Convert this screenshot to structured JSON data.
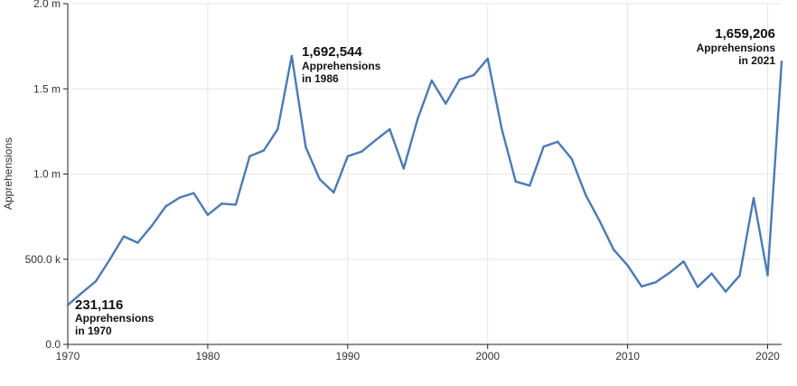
{
  "chart_data": {
    "type": "line",
    "title": "",
    "xlabel": "",
    "ylabel": "Apprehensions",
    "xlim": [
      1970,
      2021
    ],
    "ylim": [
      0,
      2000000
    ],
    "grid": true,
    "line_color": "#4a7ab5",
    "x_ticks": [
      {
        "value": 1970,
        "label": "1970"
      },
      {
        "value": 1980,
        "label": "1980"
      },
      {
        "value": 1990,
        "label": "1990"
      },
      {
        "value": 2000,
        "label": "2000"
      },
      {
        "value": 2010,
        "label": "2010"
      },
      {
        "value": 2020,
        "label": "2020"
      }
    ],
    "y_ticks": [
      {
        "value": 0,
        "label": "0.0"
      },
      {
        "value": 500000,
        "label": "500.0 k"
      },
      {
        "value": 1000000,
        "label": "1.0 m"
      },
      {
        "value": 1500000,
        "label": "1.5 m"
      },
      {
        "value": 2000000,
        "label": "2.0 m"
      }
    ],
    "series": [
      {
        "x": [
          1970,
          1971,
          1972,
          1973,
          1974,
          1975,
          1976,
          1977,
          1978,
          1979,
          1980,
          1981,
          1982,
          1983,
          1984,
          1985,
          1986,
          1987,
          1988,
          1989,
          1990,
          1991,
          1992,
          1993,
          1994,
          1995,
          1996,
          1997,
          1998,
          1999,
          2000,
          2001,
          2002,
          2003,
          2004,
          2005,
          2006,
          2007,
          2008,
          2009,
          2010,
          2011,
          2012,
          2013,
          2014,
          2015,
          2016,
          2017,
          2018,
          2019,
          2020,
          2021
        ],
        "values": [
          231116,
          302000,
          370000,
          498000,
          634000,
          597000,
          696000,
          810000,
          862000,
          888000,
          760000,
          826000,
          820000,
          1105000,
          1138000,
          1263000,
          1692544,
          1158000,
          969000,
          892000,
          1104000,
          1132000,
          1199000,
          1263000,
          1032000,
          1324000,
          1549000,
          1413000,
          1555000,
          1580000,
          1677000,
          1266000,
          956000,
          932000,
          1161000,
          1189000,
          1089000,
          877000,
          724000,
          556000,
          463000,
          340000,
          365000,
          421000,
          487000,
          337000,
          416000,
          310000,
          404000,
          859000,
          406000,
          1659206
        ]
      }
    ],
    "annotations": [
      {
        "value": "231,116",
        "line1": "Apprehensions",
        "line2": "in 1970"
      },
      {
        "value": "1,692,544",
        "line1": "Apprehensions",
        "line2": "in 1986"
      },
      {
        "value": "1,659,206",
        "line1": "Apprehensions",
        "line2": "in 2021"
      }
    ]
  }
}
